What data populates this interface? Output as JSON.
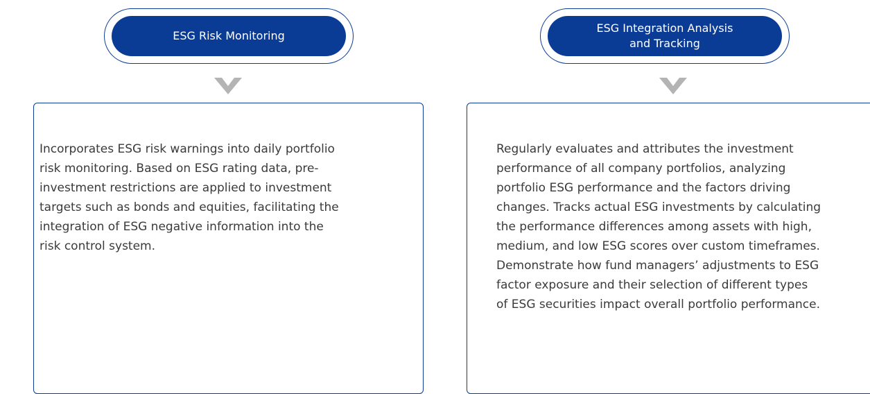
{
  "cards": [
    {
      "title": [
        "ESG Risk Monitoring"
      ],
      "lines": [
        "Incorporates ESG risk warnings into daily portfolio",
        "risk monitoring. Based on ESG rating data, pre-",
        "investment restrictions are applied to investment",
        "targets such as bonds and equities, facilitating the",
        "integration of ESG negative information into the",
        "risk control system."
      ]
    },
    {
      "title": [
        "ESG Integration Analysis",
        "and Tracking"
      ],
      "lines": [
        "Regularly evaluates and attributes the investment",
        "performance of all company portfolios, analyzing",
        "portfolio ESG performance and the factors driving",
        "changes. Tracks actual ESG investments by calculating",
        "the performance differences among assets with high,",
        "medium, and low ESG scores over custom timeframes.",
        "Demonstrate how fund managers’ adjustments to ESG",
        "factor exposure and their selection of different types",
        "of ESG securities impact overall portfolio performance."
      ]
    }
  ]
}
